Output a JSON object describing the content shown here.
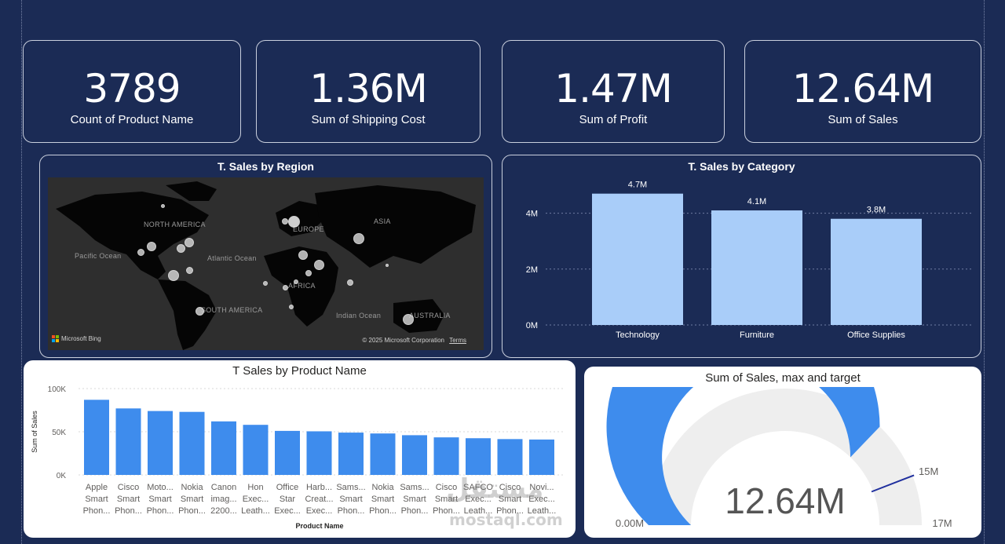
{
  "kpis": [
    {
      "value": "3789",
      "label": "Count of Product Name"
    },
    {
      "value": "1.36M",
      "label": "Sum of Shipping  Cost"
    },
    {
      "value": "1.47M",
      "label": "Sum of Profit"
    },
    {
      "value": "12.64M",
      "label": "Sum of Sales"
    }
  ],
  "map": {
    "title": "T. Sales by Region",
    "labels": {
      "north_america": "NORTH AMERICA",
      "europe": "EUROPE",
      "asia": "ASIA",
      "pacific": "Pacific Ocean",
      "atlantic": "Atlantic Ocean",
      "africa": "AFRICA",
      "south_america": "SOUTH AMERICA",
      "indian": "Indian Ocean",
      "australia": "AUSTRALIA"
    },
    "brand": "Microsoft Bing",
    "copyright": "© 2025 Microsoft Corporation",
    "terms": "Terms"
  },
  "chart_data": [
    {
      "type": "bar",
      "title": "T. Sales by Category",
      "categories": [
        "Technology",
        "Furniture",
        "Office Supplies"
      ],
      "values": [
        4.7,
        4.1,
        3.8
      ],
      "data_labels": [
        "4.7M",
        "4.1M",
        "3.8M"
      ],
      "yticks": [
        "0M",
        "2M",
        "4M"
      ],
      "ylim": [
        0,
        5
      ],
      "color": "#a9cdf9"
    },
    {
      "type": "bar",
      "title": "T Sales by Product Name",
      "xlabel": "Product Name",
      "ylabel": "Sum of Sales",
      "categories": [
        [
          "Apple",
          "Smart",
          "Phon..."
        ],
        [
          "Cisco",
          "Smart",
          "Phon..."
        ],
        [
          "Moto...",
          "Smart",
          "Phon..."
        ],
        [
          "Nokia",
          "Smart",
          "Phon..."
        ],
        [
          "Canon",
          "imag...",
          "2200..."
        ],
        [
          "Hon",
          "Exec...",
          "Leath..."
        ],
        [
          "Office",
          "Star",
          "Exec..."
        ],
        [
          "Harb...",
          "Creat...",
          "Exec..."
        ],
        [
          "Sams...",
          "Smart",
          "Phon..."
        ],
        [
          "Nokia",
          "Smart",
          "Phon..."
        ],
        [
          "Sams...",
          "Smart",
          "Phon..."
        ],
        [
          "Cisco",
          "Smart",
          "Phon..."
        ],
        [
          "SAFCO",
          "Exec...",
          "Leath..."
        ],
        [
          "Cisco",
          "Smart",
          "Phon..."
        ],
        [
          "Novi...",
          "Exec...",
          "Leath..."
        ]
      ],
      "values": [
        87000,
        77000,
        74000,
        73000,
        62000,
        58000,
        51000,
        50500,
        49000,
        48000,
        46000,
        43500,
        42500,
        41500,
        41000
      ],
      "yticks": [
        "0K",
        "50K",
        "100K"
      ],
      "ylim": [
        0,
        100000
      ],
      "color": "#3e8ced"
    },
    {
      "type": "gauge",
      "title": "Sum of Sales, max and target",
      "value": 12.64,
      "value_label": "12.64M",
      "min": 0,
      "min_label": "0.00M",
      "max": 17,
      "max_label": "17M",
      "target": 15,
      "target_label": "15M",
      "fill_color": "#3e8ced",
      "track_color": "#eeeeee"
    }
  ],
  "watermark": {
    "arabic": "مستقل",
    "latin": "mostaql.com"
  }
}
